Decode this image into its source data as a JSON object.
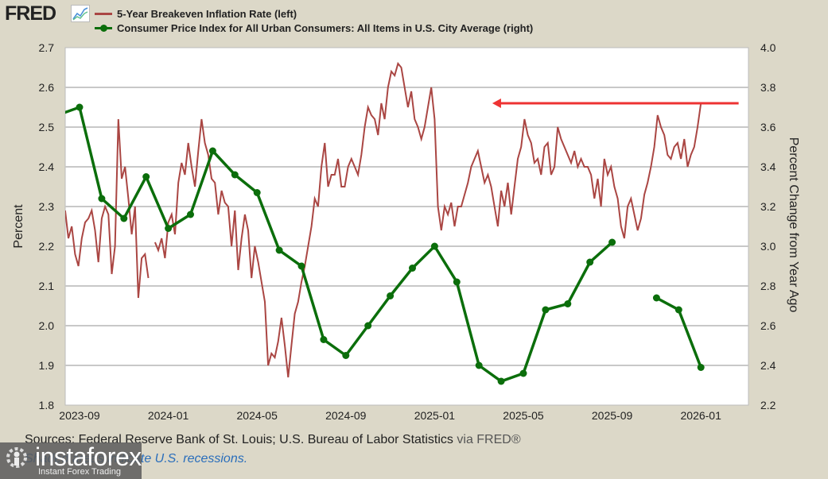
{
  "header": {
    "logo_text": "FRED",
    "logo_icon": "chart-trend-icon"
  },
  "legend": [
    {
      "label": "5-Year Breakeven Inflation Rate (left)",
      "color": "#aa4643",
      "marker": "line"
    },
    {
      "label": "Consumer Price Index for All Urban Consumers: All Items in U.S. City Average (right)",
      "color": "#0b6e0b",
      "marker": "line-dot"
    }
  ],
  "footer": {
    "sources": "Sources: Federal Reserve Bank of St. Louis; U.S. Bureau of Labor Statistics",
    "via": " via FRED®",
    "recessions_note": "Shaded areas indicate U.S. recessions."
  },
  "watermark": {
    "brand": "instaforex",
    "tagline": "Instant Forex Trading",
    "icon": "gear-person-icon"
  },
  "chart_data": {
    "type": "line",
    "title": "",
    "xlabel": "",
    "ylabel_left": "Percent",
    "ylabel_right": "Percent Change from Year Ago",
    "x_ticks": [
      "2023-09",
      "2024-01",
      "2024-05",
      "2024-09",
      "2025-01",
      "2025-05",
      "2025-09",
      "2026-01"
    ],
    "x_range_months_from_2023_09": [
      -0.65,
      6.05
    ],
    "ylim_left": [
      1.8,
      2.7
    ],
    "yticks_left": [
      "1.8",
      "1.9",
      "2.0",
      "2.1",
      "2.2",
      "2.3",
      "2.4",
      "2.5",
      "2.6",
      "2.7"
    ],
    "ylim_right": [
      2.2,
      4.0
    ],
    "yticks_right": [
      "2.2",
      "2.4",
      "2.6",
      "2.8",
      "3.0",
      "3.2",
      "3.4",
      "3.6",
      "3.8",
      "4.0"
    ],
    "grid": true,
    "legend_position": "top",
    "series": [
      {
        "name": "5-Year Breakeven Inflation Rate (left)",
        "axis": "left",
        "color": "#aa4643",
        "x_months": [
          -0.65,
          -0.5,
          -0.35,
          -0.2,
          -0.05,
          0.1,
          0.25,
          0.4,
          0.55,
          0.7,
          0.85,
          1.0,
          1.15,
          1.3,
          1.45,
          1.6,
          1.75,
          1.9,
          2.05,
          2.2,
          2.35,
          2.5,
          2.65,
          2.8,
          2.95,
          3.1,
          3.25,
          3.4,
          3.55,
          3.7,
          3.85,
          4.0,
          4.15,
          4.3,
          4.45,
          4.6,
          4.75,
          4.9,
          5.05,
          5.2,
          5.35,
          5.5,
          5.65,
          5.8,
          5.95,
          6.1,
          6.25,
          6.4,
          6.55,
          6.7,
          6.85,
          7.0,
          7.15,
          7.3,
          7.45,
          7.6,
          7.75,
          7.9,
          8.05,
          8.2,
          8.35,
          8.5,
          8.65,
          8.8,
          8.95,
          9.1,
          9.25,
          9.4,
          9.55,
          9.7,
          9.85,
          10.0,
          10.15,
          10.3,
          10.45,
          10.6,
          10.75,
          10.9,
          11.05,
          11.2,
          11.35,
          11.5,
          11.65,
          11.8,
          11.95,
          12.1,
          12.25,
          12.4,
          12.55,
          12.7,
          12.85,
          13.0,
          13.15,
          13.3,
          13.45,
          13.6,
          13.75,
          13.9,
          14.05,
          14.2,
          14.35,
          14.5,
          14.65,
          14.8,
          14.95,
          15.1,
          15.25,
          15.4,
          15.55,
          15.7,
          15.85,
          16.0,
          16.15,
          16.3,
          16.45,
          16.6,
          16.75,
          16.9,
          17.05,
          17.2,
          17.35,
          17.5,
          17.65,
          17.8,
          17.95,
          18.1,
          18.25,
          18.4,
          18.55,
          18.7,
          18.85,
          19.0,
          19.15,
          19.3,
          19.45,
          19.6,
          19.75,
          19.9,
          20.05,
          20.2,
          20.35,
          20.5,
          20.65,
          20.8,
          20.95,
          21.1,
          21.25,
          21.4,
          21.55,
          21.7,
          21.85,
          22.0,
          22.15,
          22.3,
          22.45,
          22.6,
          22.75,
          22.9,
          23.05,
          23.2,
          23.35,
          23.5,
          23.65,
          23.8,
          23.95,
          24.1,
          24.25,
          24.4,
          24.55,
          24.7,
          24.85,
          25.0,
          25.15,
          25.3,
          25.45,
          25.6,
          25.75,
          25.9,
          26.05,
          26.2,
          26.35,
          26.5,
          26.65,
          26.8,
          26.95,
          27.1,
          27.25,
          27.4,
          27.55,
          27.7,
          27.85,
          28.0,
          28.15,
          28.3,
          28.45,
          28.6,
          28.75,
          28.9,
          29.05,
          29.2
        ],
        "values": [
          2.29,
          2.22,
          2.25,
          2.18,
          2.15,
          2.22,
          2.26,
          2.27,
          2.29,
          2.24,
          2.16,
          2.27,
          2.3,
          2.28,
          2.13,
          2.2,
          2.52,
          2.37,
          2.4,
          2.32,
          2.23,
          2.3,
          2.07,
          2.17,
          2.18,
          2.12,
          null,
          2.21,
          2.19,
          2.22,
          2.17,
          2.26,
          2.28,
          2.23,
          2.36,
          2.41,
          2.38,
          2.46,
          2.4,
          2.35,
          2.44,
          2.52,
          2.46,
          2.43,
          2.37,
          2.36,
          2.28,
          2.34,
          2.31,
          2.3,
          2.2,
          2.29,
          2.14,
          2.22,
          2.28,
          2.24,
          2.12,
          2.2,
          2.16,
          2.11,
          2.06,
          1.9,
          1.93,
          1.92,
          1.96,
          2.02,
          1.95,
          1.87,
          1.95,
          2.03,
          2.06,
          2.11,
          2.15,
          2.2,
          2.25,
          2.32,
          2.3,
          2.4,
          2.46,
          2.35,
          2.38,
          2.38,
          2.42,
          2.35,
          2.35,
          2.4,
          2.42,
          2.4,
          2.38,
          2.43,
          2.5,
          2.55,
          2.53,
          2.52,
          2.48,
          2.56,
          2.52,
          2.6,
          2.64,
          2.63,
          2.66,
          2.65,
          2.6,
          2.55,
          2.59,
          2.52,
          2.5,
          2.47,
          2.5,
          2.55,
          2.6,
          2.52,
          2.3,
          2.24,
          2.3,
          2.28,
          2.31,
          2.25,
          2.3,
          2.3,
          2.33,
          2.36,
          2.4,
          2.42,
          2.44,
          2.4,
          2.36,
          2.38,
          2.35,
          2.3,
          2.25,
          2.34,
          2.3,
          2.36,
          2.28,
          2.35,
          2.42,
          2.45,
          2.52,
          2.48,
          2.46,
          2.41,
          2.42,
          2.38,
          2.45,
          2.46,
          2.38,
          2.4,
          2.5,
          2.47,
          2.45,
          2.43,
          2.41,
          2.44,
          2.4,
          2.42,
          2.4,
          2.4,
          2.38,
          2.32,
          2.37,
          2.3,
          2.42,
          2.38,
          2.4,
          2.35,
          2.32,
          2.25,
          2.22,
          2.3,
          2.32,
          2.28,
          2.24,
          2.27,
          2.33,
          2.36,
          2.4,
          2.45,
          2.53,
          2.5,
          2.48,
          2.43,
          2.42,
          2.45,
          2.46,
          2.42,
          2.47,
          2.4,
          2.43,
          2.45,
          2.5,
          2.56
        ]
      },
      {
        "name": "Consumer Price Index for All Urban Consumers: All Items in U.S. City Average (right)",
        "axis": "right",
        "color": "#0b6e0b",
        "markers": true,
        "x_labels": [
          "2023-08",
          "2023-09",
          "2023-10",
          "2023-11",
          "2023-12",
          "2024-01",
          "2024-02",
          "2024-03",
          "2024-04",
          "2024-05",
          "2024-06",
          "2024-07",
          "2024-08",
          "2024-09",
          "2024-10",
          "2024-11",
          "2024-12",
          "2025-01",
          "2025-02",
          "2025-03",
          "2025-04",
          "2025-05",
          "2025-06",
          "2025-07",
          "2025-08",
          "2025-09",
          "2025-10",
          "2025-11",
          "2025-12",
          "2026-01"
        ],
        "x_months": [
          -1,
          0,
          1,
          2,
          3,
          4,
          5,
          6,
          7,
          8,
          9,
          10,
          11,
          12,
          13,
          14,
          15,
          16,
          17,
          18,
          19,
          20,
          21,
          22,
          23,
          24,
          25,
          26,
          27,
          28
        ],
        "values": [
          3.66,
          3.7,
          3.24,
          3.14,
          3.35,
          3.09,
          3.16,
          3.48,
          3.36,
          3.27,
          2.98,
          2.9,
          2.53,
          2.45,
          2.6,
          2.75,
          2.89,
          3.0,
          2.82,
          2.4,
          2.32,
          2.36,
          2.68,
          2.71,
          2.92,
          3.02,
          null,
          2.74,
          2.68,
          2.39
        ]
      }
    ],
    "annotations": [
      {
        "type": "arrow",
        "color": "#ee3333",
        "direction": "left",
        "y_value_left": 2.56,
        "from_month": 29.7,
        "to_month": 18.6
      }
    ]
  }
}
